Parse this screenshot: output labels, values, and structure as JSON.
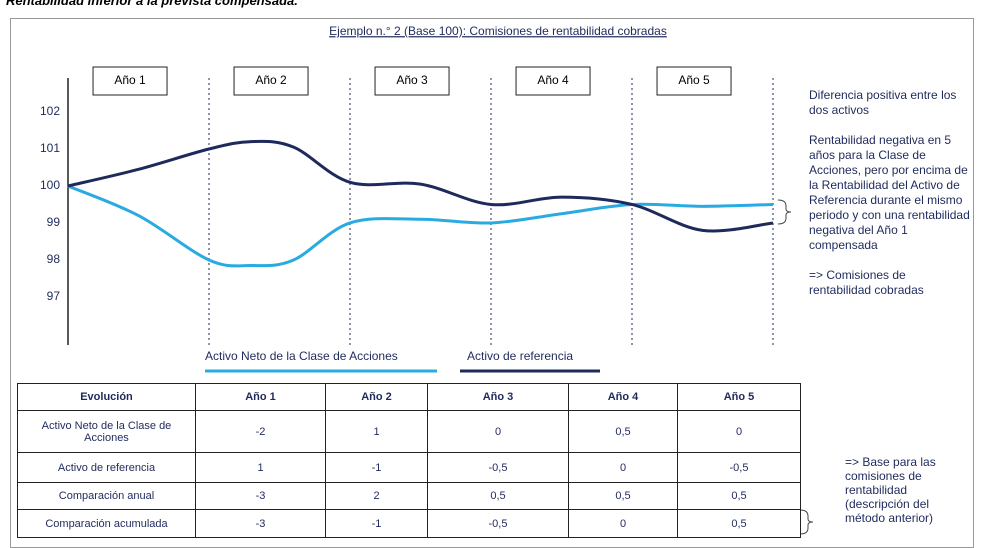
{
  "header": "Rentabilidad inferior a la prevista compensada.",
  "chart_data": {
    "type": "line",
    "title": "Ejemplo n.° 2 (Base 100): Comisiones de rentabilidad cobradas",
    "period_labels": [
      "Año 1",
      "Año 2",
      "Año 3",
      "Año 4",
      "Año 5"
    ],
    "x": [
      0,
      0.5,
      1,
      1.3,
      1.6,
      2,
      2.5,
      3,
      3.5,
      4,
      4.5,
      5
    ],
    "xlim": [
      0,
      5
    ],
    "ylim": [
      95.7,
      102.92
    ],
    "yticks": [
      97,
      98,
      99,
      100,
      101,
      102
    ],
    "series": [
      {
        "name": "Activo Neto de la Clase de Acciones",
        "color": "#29abe2",
        "values": [
          100,
          99.2,
          98.0,
          97.85,
          98.0,
          99.0,
          99.1,
          99.0,
          99.25,
          99.5,
          99.45,
          99.5
        ]
      },
      {
        "name": "Activo de referencia",
        "color": "#1f2a5c",
        "values": [
          100,
          100.45,
          101.0,
          101.2,
          101.05,
          100.1,
          100.05,
          99.5,
          99.7,
          99.5,
          98.8,
          99.0
        ]
      }
    ],
    "notes": [
      "Diferencia positiva entre los dos activos",
      "Rentabilidad negativa en 5 años para la Clase de Acciones, pero por encima de la Rentabilidad del Activo de Referencia durante el mismo periodo y con una rentabilidad negativa del Año 1 compensada",
      "=> Comisiones de rentabilidad cobradas"
    ]
  },
  "table": {
    "columns": [
      "Evolución",
      "Año 1",
      "Año 2",
      "Año 3",
      "Año 4",
      "Año 5"
    ],
    "rows": [
      [
        "Activo Neto de la Clase de Acciones",
        "-2",
        "1",
        "0",
        "0,5",
        "0"
      ],
      [
        "Activo de referencia",
        "1",
        "-1",
        "-0,5",
        "0",
        "-0,5"
      ],
      [
        "Comparación anual",
        "-3",
        "2",
        "0,5",
        "0,5",
        "0,5"
      ],
      [
        "Comparación acumulada",
        "-3",
        "-1",
        "-0,5",
        "0",
        "0,5"
      ]
    ],
    "note": "=> Base para las comisiones de rentabilidad (descripción del método anterior)"
  }
}
